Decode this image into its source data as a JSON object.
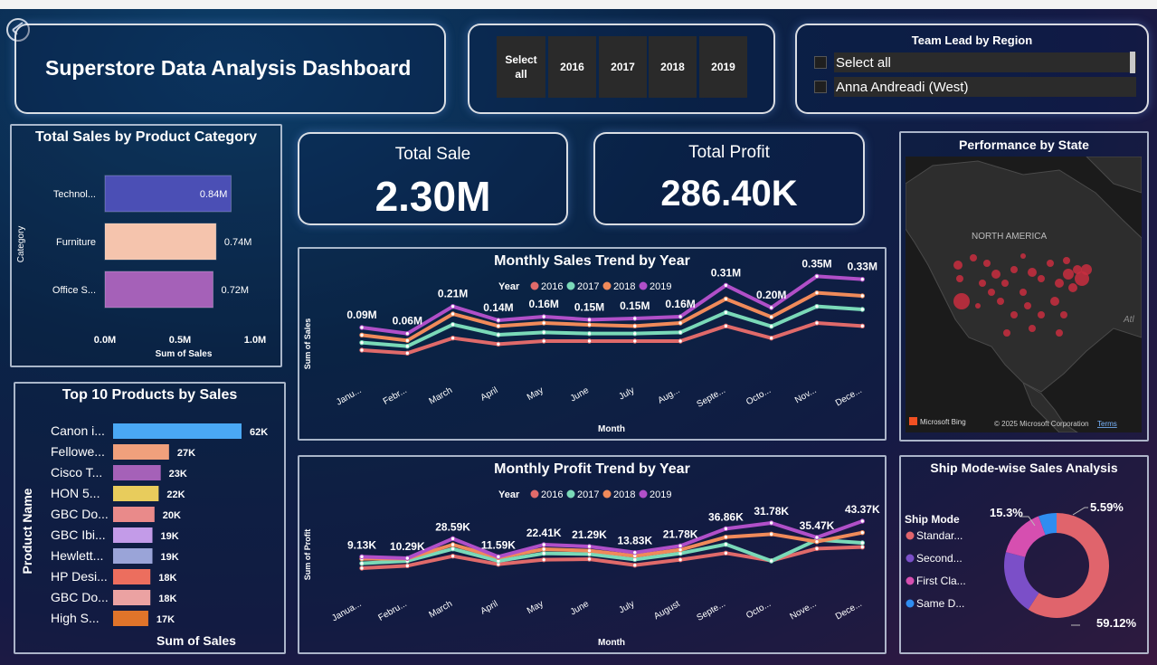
{
  "header": {
    "title": "Superstore Data Analysis Dashboard",
    "year_filter": [
      "Select all",
      "2016",
      "2017",
      "2018",
      "2019"
    ],
    "team_lead": {
      "title": "Team Lead by Region",
      "options": [
        "Select all",
        "Anna Andreadi (West)"
      ]
    }
  },
  "kpis": {
    "sales": {
      "label": "Total Sale",
      "value": "2.30M"
    },
    "profit": {
      "label": "Total Profit",
      "value": "286.40K"
    }
  },
  "map": {
    "title": "Performance by State",
    "region_label": "NORTH AMERICA",
    "ocean_label": "Atl",
    "brand": "Microsoft Bing",
    "copyright": "© 2025 Microsoft Corporation",
    "terms": "Terms"
  },
  "colors": {
    "y2016": "#e06a6a",
    "y2017": "#7ad9b8",
    "y2018": "#f08a5a",
    "y2019": "#b04fc8"
  },
  "chart_data": [
    {
      "id": "category",
      "type": "bar",
      "orientation": "horizontal",
      "title": "Total Sales by Product Category",
      "xlabel": "Sum of Sales",
      "ylabel": "Category",
      "categories": [
        "Technol...",
        "Furniture",
        "Office S..."
      ],
      "values": [
        0.84,
        0.74,
        0.72
      ],
      "labels": [
        "0.84M",
        "0.74M",
        "0.72M"
      ],
      "colors": [
        "#4b4fb5",
        "#f5c4ad",
        "#a561b8"
      ],
      "xlim": [
        0,
        1
      ],
      "xticks": [
        "0.0M",
        "0.5M",
        "1.0M"
      ]
    },
    {
      "id": "top10",
      "type": "bar",
      "orientation": "horizontal",
      "title": "Top 10 Products by Sales",
      "xlabel": "Sum of Sales",
      "ylabel": "Product Name",
      "categories": [
        "Canon i...",
        "Fellowe...",
        "Cisco T...",
        "HON 5...",
        "GBC Do...",
        "GBC Ibi...",
        "Hewlett...",
        "HP Desi...",
        "GBC Do...",
        "High S..."
      ],
      "values": [
        62,
        27,
        23,
        22,
        20,
        19,
        19,
        18,
        18,
        17
      ],
      "labels": [
        "62K",
        "27K",
        "23K",
        "22K",
        "20K",
        "19K",
        "19K",
        "18K",
        "18K",
        "17K"
      ],
      "colors": [
        "#4aa8f5",
        "#f0a07c",
        "#a561b8",
        "#e8cc5c",
        "#e98a8a",
        "#c39be8",
        "#9aa4d8",
        "#ec6e5e",
        "#eba2a2",
        "#e0742a"
      ],
      "xlim": [
        0,
        62
      ]
    },
    {
      "id": "monthly_sales",
      "type": "line",
      "title": "Monthly Sales Trend by Year",
      "xlabel": "Month",
      "ylabel": "Sum of Sales",
      "legend_title": "Year",
      "categories": [
        "Janu...",
        "Febr...",
        "March",
        "April",
        "May",
        "June",
        "July",
        "Aug...",
        "Septe...",
        "Octo...",
        "Nov...",
        "Dece..."
      ],
      "series": [
        {
          "name": "2016",
          "values": [
            0.015,
            0.01,
            0.035,
            0.025,
            0.03,
            0.03,
            0.03,
            0.03,
            0.055,
            0.035,
            0.06,
            0.055
          ]
        },
        {
          "name": "2017",
          "values": [
            0.02,
            0.014,
            0.05,
            0.033,
            0.037,
            0.035,
            0.035,
            0.037,
            0.07,
            0.047,
            0.08,
            0.075
          ]
        },
        {
          "name": "2018",
          "values": [
            0.025,
            0.016,
            0.06,
            0.04,
            0.045,
            0.042,
            0.04,
            0.045,
            0.085,
            0.055,
            0.095,
            0.09
          ]
        },
        {
          "name": "2019",
          "values": [
            0.03,
            0.02,
            0.065,
            0.042,
            0.048,
            0.043,
            0.045,
            0.048,
            0.1,
            0.063,
            0.115,
            0.11
          ]
        }
      ],
      "totals": [
        0.09,
        0.06,
        0.21,
        0.14,
        0.16,
        0.15,
        0.15,
        0.16,
        0.31,
        0.2,
        0.35,
        0.33
      ],
      "total_labels": [
        "0.09M",
        "0.06M",
        "0.21M",
        "0.14M",
        "0.16M",
        "0.15M",
        "0.15M",
        "0.16M",
        "0.31M",
        "0.20M",
        "0.35M",
        "0.33M"
      ]
    },
    {
      "id": "monthly_profit",
      "type": "line",
      "title": "Monthly Profit Trend by Year",
      "xlabel": "Month",
      "ylabel": "Sum of Profit",
      "legend_title": "Year",
      "categories": [
        "Janua...",
        "Febru...",
        "March",
        "April",
        "May",
        "June",
        "July",
        "August",
        "Septe...",
        "Octo...",
        "Nove...",
        "Dece..."
      ],
      "series": [
        {
          "name": "2016",
          "values": [
            1.5,
            2.3,
            5.5,
            2.8,
            4.3,
            4.5,
            2.5,
            4.3,
            6.5,
            4.0,
            8.0,
            8.5
          ]
        },
        {
          "name": "2017",
          "values": [
            2.2,
            3.0,
            7.0,
            3.0,
            5.5,
            5.3,
            3.5,
            5.5,
            8.5,
            3.0,
            10.0,
            9.0
          ]
        },
        {
          "name": "2018",
          "values": [
            2.8,
            2.9,
            7.5,
            3.2,
            6.0,
            5.5,
            3.8,
            5.8,
            10.0,
            11.0,
            8.5,
            11.5
          ]
        },
        {
          "name": "2019",
          "values": [
            2.6,
            2.1,
            8.6,
            2.6,
            6.6,
            6.0,
            4.0,
            6.2,
            11.9,
            13.8,
            9.0,
            14.4
          ]
        }
      ],
      "totals": [
        9.13,
        10.29,
        28.59,
        11.59,
        22.41,
        21.29,
        13.83,
        21.78,
        36.86,
        31.78,
        35.47,
        43.37
      ],
      "total_labels": [
        "9.13K",
        "10.29K",
        "28.59K",
        "11.59K",
        "22.41K",
        "21.29K",
        "13.83K",
        "21.78K",
        "36.86K",
        "31.78K",
        "35.47K",
        "43.37K"
      ]
    },
    {
      "id": "shipmode",
      "type": "pie",
      "donut": true,
      "title": "Ship Mode-wise Sales Analysis",
      "legend_title": "Ship Mode",
      "categories": [
        "Standar...",
        "Second...",
        "First Cla...",
        "Same D..."
      ],
      "values": [
        59.12,
        20.0,
        15.3,
        5.59
      ],
      "labels": [
        "59.12%",
        "",
        "15.3%",
        "5.59%"
      ],
      "colors": [
        "#e0646c",
        "#7b4fc8",
        "#d64fb0",
        "#2f8df0"
      ]
    }
  ]
}
